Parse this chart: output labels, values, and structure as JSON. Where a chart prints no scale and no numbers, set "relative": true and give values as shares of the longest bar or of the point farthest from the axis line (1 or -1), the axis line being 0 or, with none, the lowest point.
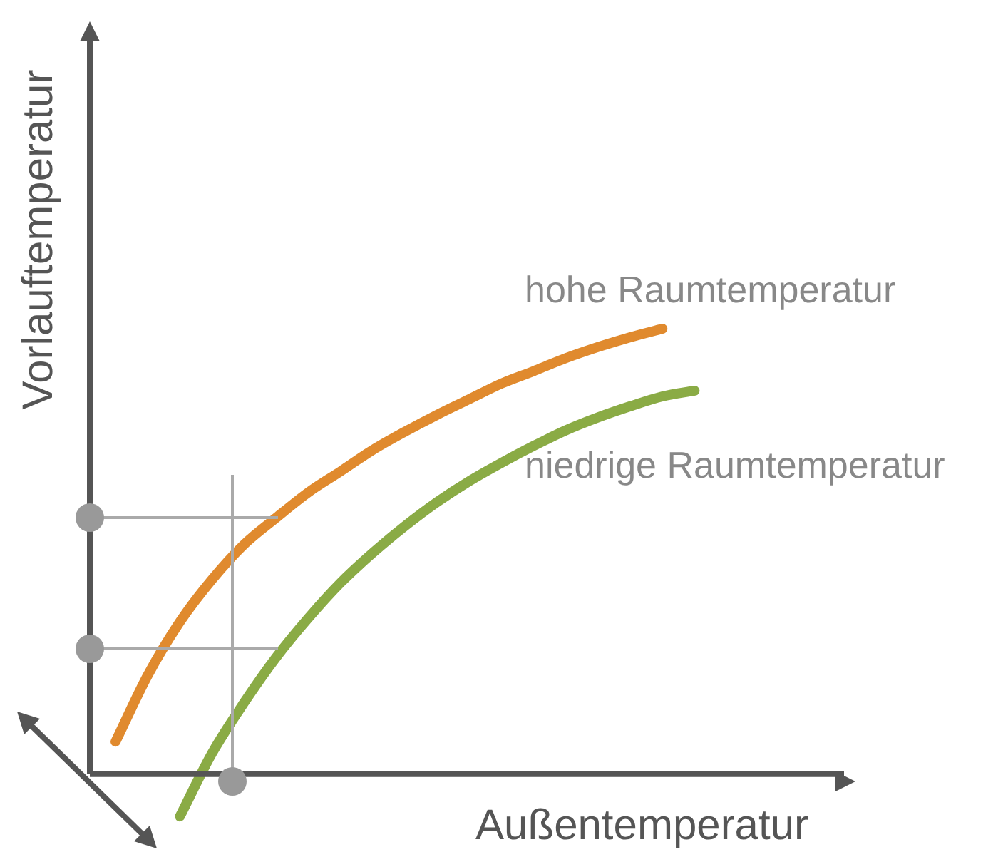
{
  "chart_data": {
    "type": "line",
    "relative": true,
    "xlabel": "Außentemperatur",
    "ylabel": "Vorlauftemperatur",
    "legend": false,
    "marker": "none",
    "categories": [
      null,
      null,
      null,
      null,
      null,
      null,
      null,
      null,
      null,
      null,
      null,
      null,
      null,
      null,
      null,
      null,
      null,
      null,
      null
    ],
    "series": [
      {
        "name": "hohe Raumtemperatur",
        "color": "#e08a2e",
        "values": [
          0.073,
          0.222,
          0.342,
          0.437,
          0.516,
          0.576,
          0.633,
          0.68,
          0.728,
          0.769,
          0.807,
          0.842,
          0.877,
          0.905,
          0.934,
          0.959,
          0.981,
          1.0,
          null
        ]
      },
      {
        "name": "niedrige Raumtemperatur",
        "color": "#8aab45",
        "values": [
          null,
          null,
          -0.095,
          0.047,
          0.161,
          0.263,
          0.351,
          0.43,
          0.497,
          0.557,
          0.611,
          0.658,
          0.699,
          0.737,
          0.772,
          0.801,
          0.826,
          0.848,
          0.861
        ]
      }
    ]
  }
}
